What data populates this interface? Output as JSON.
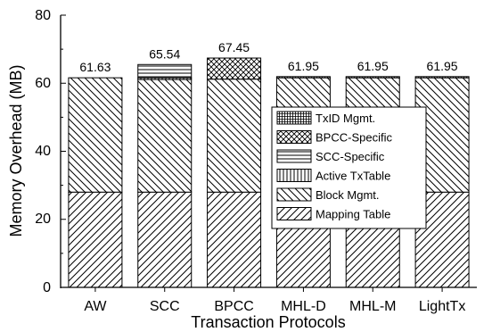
{
  "chart_data": {
    "type": "bar",
    "stacked": true,
    "xlabel": "Transaction Protocols",
    "ylabel": "Memory Overhead (MB)",
    "ylim": [
      0,
      80
    ],
    "yticks": [
      "0",
      "20",
      "40",
      "60",
      "80"
    ],
    "categories": [
      "AW",
      "SCC",
      "BPCC",
      "MHL-D",
      "MHL-M",
      "LightTx"
    ],
    "totals": [
      "61.63",
      "65.54",
      "67.45",
      "61.95",
      "61.95",
      "61.95"
    ],
    "legend_position": "center-right",
    "series": [
      {
        "name": "Mapping Table",
        "pattern": "diag-forward",
        "values": [
          28.0,
          28.0,
          28.0,
          28.0,
          28.0,
          28.0
        ]
      },
      {
        "name": "Block Mgmt.",
        "pattern": "diag-back",
        "values": [
          33.6,
          33.1,
          33.2,
          33.6,
          33.6,
          33.6
        ]
      },
      {
        "name": "Active TxTable",
        "pattern": "vertical",
        "values": [
          0.0,
          0.5,
          0.0,
          0.0,
          0.0,
          0.0
        ]
      },
      {
        "name": "SCC-Specific",
        "pattern": "horizontal",
        "values": [
          0.0,
          3.9,
          0.0,
          0.0,
          0.0,
          0.0
        ]
      },
      {
        "name": "BPCC-Specific",
        "pattern": "crosshatch",
        "values": [
          0.0,
          0.0,
          6.2,
          0.0,
          0.0,
          0.0
        ]
      },
      {
        "name": "TxID Mgmt.",
        "pattern": "grid",
        "values": [
          0.0,
          0.0,
          0.0,
          0.35,
          0.35,
          0.35
        ]
      }
    ]
  }
}
